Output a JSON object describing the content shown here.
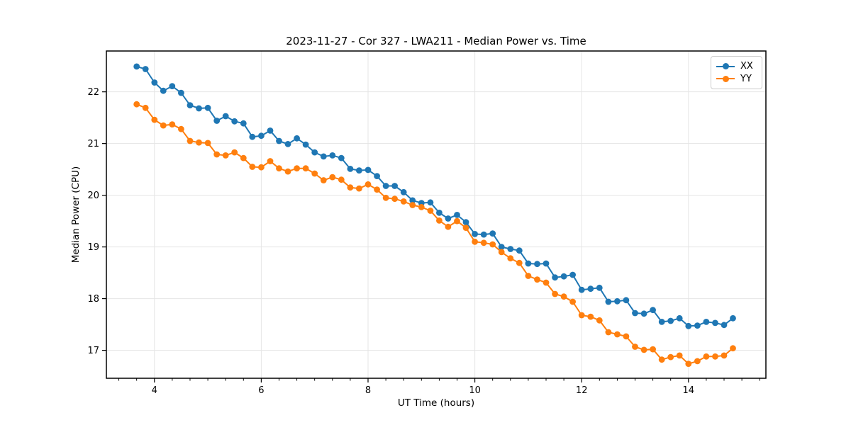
{
  "figure": {
    "title": "2023-11-27 - Cor 327 - LWA211 - Median Power vs. Time",
    "xlabel": "UT Time (hours)",
    "ylabel": "Median Power (CPU)"
  },
  "legend": {
    "position": "upper right",
    "items": [
      {
        "label": "XX",
        "color": "#1f77b4"
      },
      {
        "label": "YY",
        "color": "#ff7f0e"
      }
    ]
  },
  "chart_data": {
    "type": "line",
    "title": "2023-11-27 - Cor 327 - LWA211 - Median Power vs. Time",
    "xlabel": "UT Time (hours)",
    "ylabel": "Median Power (CPU)",
    "xlim": [
      3.1,
      15.45
    ],
    "ylim": [
      16.46,
      22.79
    ],
    "xticks": [
      4,
      6,
      8,
      10,
      12,
      14
    ],
    "yticks": [
      17,
      18,
      19,
      20,
      21,
      22
    ],
    "x_minor_step": 0.333,
    "grid": true,
    "legend_position": "upper right",
    "marker": "circle",
    "x": [
      3.667,
      3.833,
      4,
      4.167,
      4.333,
      4.5,
      4.667,
      4.833,
      5,
      5.167,
      5.333,
      5.5,
      5.667,
      5.833,
      6,
      6.167,
      6.333,
      6.5,
      6.667,
      6.833,
      7,
      7.167,
      7.333,
      7.5,
      7.667,
      7.833,
      8,
      8.167,
      8.333,
      8.5,
      8.667,
      8.833,
      9,
      9.167,
      9.333,
      9.5,
      9.667,
      9.833,
      10,
      10.167,
      10.333,
      10.5,
      10.667,
      10.833,
      11,
      11.167,
      11.333,
      11.5,
      11.667,
      11.833,
      12,
      12.167,
      12.333,
      12.5,
      12.667,
      12.833,
      13,
      13.167,
      13.333,
      13.5,
      13.667,
      13.833,
      14,
      14.167,
      14.333,
      14.5,
      14.667,
      14.833
    ],
    "series": [
      {
        "name": "XX",
        "color": "#1f77b4",
        "values": [
          22.49,
          22.44,
          22.18,
          22.02,
          22.11,
          21.98,
          21.74,
          21.68,
          21.69,
          21.44,
          21.53,
          21.43,
          21.39,
          21.13,
          21.15,
          21.25,
          21.05,
          20.99,
          21.1,
          20.98,
          20.83,
          20.75,
          20.77,
          20.72,
          20.51,
          20.48,
          20.49,
          20.37,
          20.18,
          20.18,
          20.06,
          19.9,
          19.85,
          19.86,
          19.66,
          19.55,
          19.62,
          19.48,
          19.25,
          19.24,
          19.26,
          19.0,
          18.96,
          18.93,
          18.68,
          18.67,
          18.68,
          18.41,
          18.43,
          18.46,
          18.17,
          18.19,
          18.21,
          17.94,
          17.95,
          17.97,
          17.72,
          17.71,
          17.78,
          17.55,
          17.57,
          17.62,
          17.47,
          17.48,
          17.55,
          17.53,
          17.49,
          17.62
        ]
      },
      {
        "name": "YY",
        "color": "#ff7f0e",
        "values": [
          21.76,
          21.69,
          21.46,
          21.35,
          21.37,
          21.28,
          21.05,
          21.02,
          21.01,
          20.79,
          20.77,
          20.83,
          20.72,
          20.55,
          20.54,
          20.66,
          20.52,
          20.46,
          20.52,
          20.52,
          20.42,
          20.29,
          20.35,
          20.3,
          20.15,
          20.13,
          20.21,
          20.11,
          19.95,
          19.93,
          19.88,
          19.81,
          19.77,
          19.7,
          19.51,
          19.39,
          19.5,
          19.37,
          19.1,
          19.08,
          19.05,
          18.9,
          18.78,
          18.69,
          18.44,
          18.37,
          18.31,
          18.09,
          18.04,
          17.94,
          17.68,
          17.65,
          17.58,
          17.35,
          17.31,
          17.27,
          17.07,
          17.01,
          17.02,
          16.82,
          16.87,
          16.9,
          16.74,
          16.79,
          16.88,
          16.88,
          16.9,
          17.04
        ]
      }
    ]
  }
}
